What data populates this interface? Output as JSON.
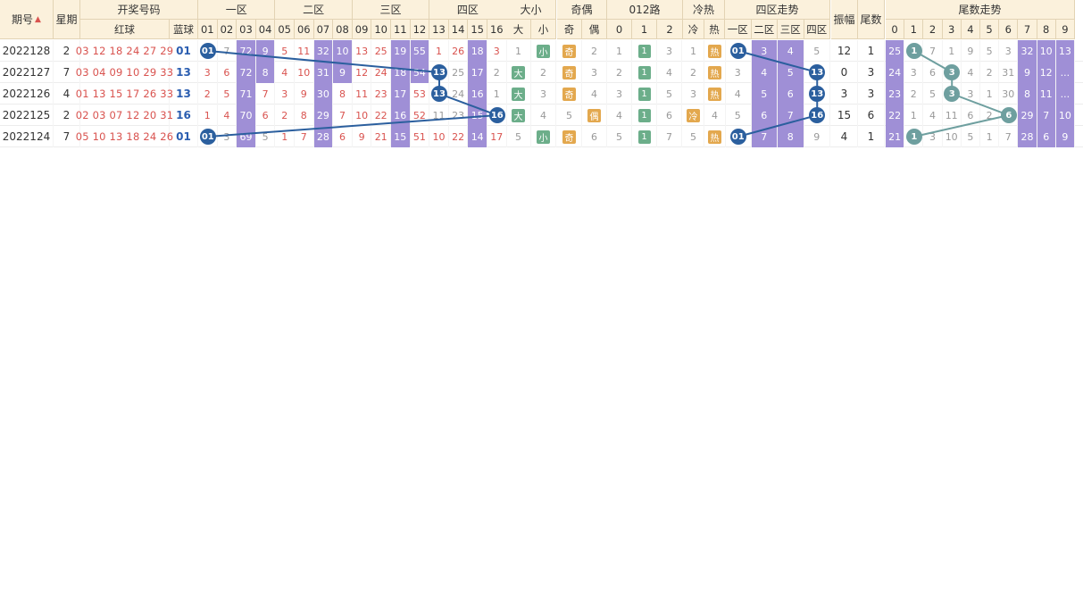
{
  "header": {
    "period": "期号",
    "weekday": "星期",
    "draw": "开奖号码",
    "red": "红球",
    "blue": "蓝球",
    "zone1": "一区",
    "zone2": "二区",
    "zone3": "三区",
    "zone4": "四区",
    "size": "大小",
    "parity": "奇偶",
    "mod012": "012路",
    "hotcold": "冷热",
    "zonetrend": "四区走势",
    "amplitude": "振幅",
    "tail": "尾数",
    "tailtrend": "尾数走势",
    "numbers": [
      "01",
      "02",
      "03",
      "04",
      "05",
      "06",
      "07",
      "08",
      "09",
      "10",
      "11",
      "12",
      "13",
      "14",
      "15",
      "16"
    ],
    "size_cols": [
      "大",
      "小"
    ],
    "parity_cols": [
      "奇",
      "偶"
    ],
    "mod_cols": [
      "0",
      "1",
      "2"
    ],
    "hot_cols": [
      "冷",
      "热"
    ],
    "zone_cols": [
      "一区",
      "二区",
      "三区",
      "四区"
    ],
    "tail_cols": [
      "0",
      "1",
      "2",
      "3",
      "4",
      "5",
      "6",
      "7",
      "8",
      "9"
    ]
  },
  "rows": [
    {
      "period": "2022128",
      "week": "2",
      "red": "03 12 18 24 27 29",
      "blue": "01",
      "z": [
        "●",
        "7",
        "72",
        "9",
        "5",
        "11",
        "32",
        "10",
        "13",
        "25",
        "19",
        "55",
        "1",
        "26",
        "18",
        "3"
      ],
      "size": "小",
      "parity": "奇",
      "mod": "1",
      "hot": "热",
      "zone": "一区",
      "amp": "12",
      "tail": "1",
      "tailmiss": [
        "25",
        "●",
        "7",
        "1",
        "9",
        "5",
        "3",
        "32",
        "10",
        "13"
      ]
    },
    {
      "period": "2022127",
      "week": "7",
      "red": "03 04 09 10 29 33",
      "blue": "13",
      "z": [
        "3",
        "6",
        "72",
        "8",
        "4",
        "10",
        "31",
        "9",
        "12",
        "24",
        "18",
        "54",
        "●",
        "25",
        "17",
        "2"
      ],
      "size": "大",
      "parity": "奇",
      "mod": "1",
      "hot": "热",
      "zone": "四区",
      "amp": "0",
      "tail": "3",
      "tailmiss": [
        "24",
        "3",
        "6",
        "●",
        "4",
        "2",
        "31",
        "9",
        "12",
        "..."
      ]
    },
    {
      "period": "2022126",
      "week": "4",
      "red": "01 13 15 17 26 33",
      "blue": "13",
      "z": [
        "2",
        "5",
        "71",
        "7",
        "3",
        "9",
        "30",
        "8",
        "11",
        "23",
        "17",
        "53",
        "●",
        "24",
        "16",
        "1"
      ],
      "size": "大",
      "parity": "奇",
      "mod": "1",
      "hot": "热",
      "zone": "四区",
      "amp": "3",
      "tail": "3",
      "tailmiss": [
        "23",
        "2",
        "5",
        "●",
        "3",
        "1",
        "30",
        "8",
        "11",
        "..."
      ]
    },
    {
      "period": "2022125",
      "week": "2",
      "red": "02 03 07 12 20 31",
      "blue": "16",
      "z": [
        "1",
        "4",
        "70",
        "6",
        "2",
        "8",
        "29",
        "7",
        "10",
        "22",
        "16",
        "52",
        "11",
        "23",
        "15",
        "●"
      ],
      "size": "大",
      "parity": "偶",
      "mod": "1",
      "hot": "冷",
      "zone": "四区",
      "amp": "15",
      "tail": "6",
      "tailmiss": [
        "22",
        "1",
        "4",
        "11",
        "6",
        "2",
        "●",
        "29",
        "7",
        "10"
      ]
    },
    {
      "period": "2022124",
      "week": "7",
      "red": "05 10 13 18 24 26",
      "blue": "01",
      "z": [
        "●",
        "3",
        "69",
        "5",
        "1",
        "7",
        "28",
        "6",
        "9",
        "21",
        "15",
        "51",
        "10",
        "22",
        "14",
        "17"
      ],
      "size": "小",
      "parity": "奇",
      "mod": "1",
      "hot": "热",
      "zone": "一区",
      "amp": "4",
      "tail": "1",
      "tailmiss": [
        "21",
        "●",
        "3",
        "10",
        "5",
        "1",
        "7",
        "28",
        "6",
        "9"
      ]
    }
  ],
  "status": {
    "note": ""
  }
}
